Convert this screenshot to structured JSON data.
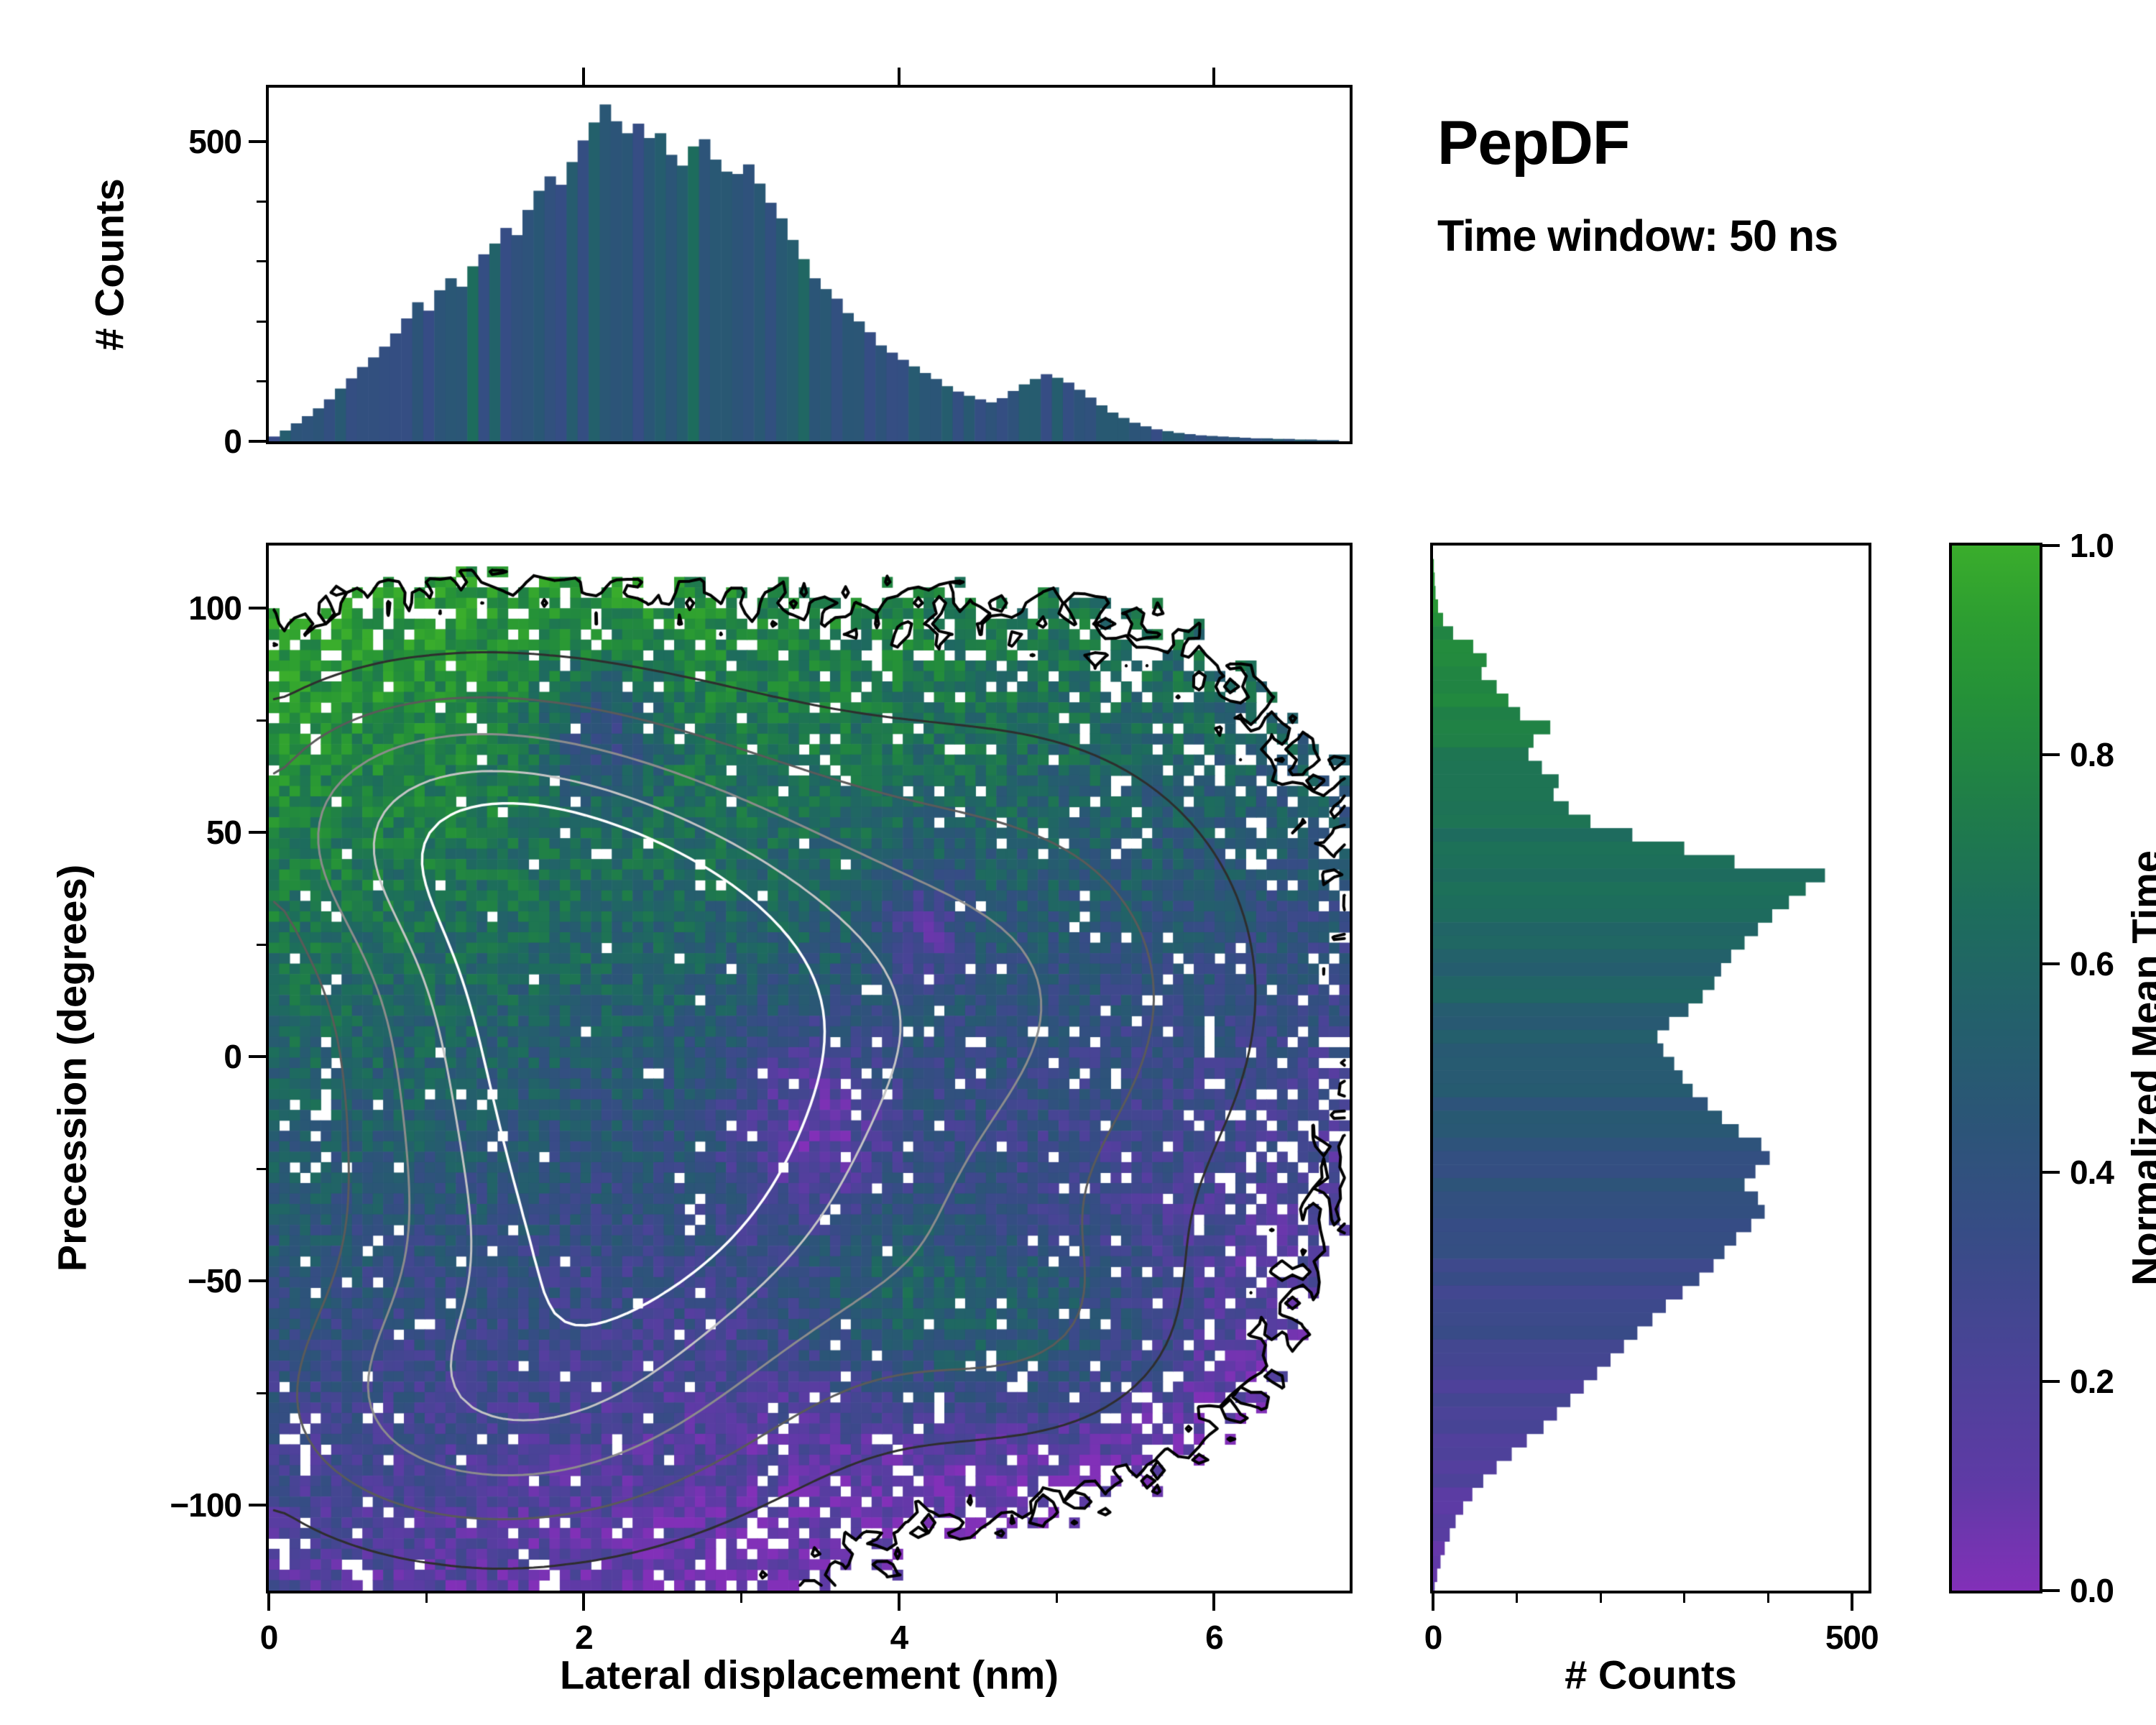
{
  "annotations": {
    "title": "PepDF",
    "subtitle": "Time window: 50 ns"
  },
  "colorbar": {
    "label": "Normalized Mean Time",
    "ticks": [
      {
        "v": 0.0,
        "label": "0.0"
      },
      {
        "v": 0.2,
        "label": "0.2"
      },
      {
        "v": 0.4,
        "label": "0.4"
      },
      {
        "v": 0.6,
        "label": "0.6"
      },
      {
        "v": 0.8,
        "label": "0.8"
      },
      {
        "v": 1.0,
        "label": "1.0"
      }
    ],
    "stops": [
      [
        0.0,
        "#8230b8"
      ],
      [
        0.1,
        "#5f3aa6"
      ],
      [
        0.22,
        "#4a4397"
      ],
      [
        0.34,
        "#374c86"
      ],
      [
        0.45,
        "#2b5577"
      ],
      [
        0.55,
        "#23606b"
      ],
      [
        0.65,
        "#1d6d5c"
      ],
      [
        0.75,
        "#1f7d49"
      ],
      [
        0.85,
        "#249039"
      ],
      [
        0.93,
        "#2d9e31"
      ],
      [
        1.0,
        "#3aad2c"
      ]
    ]
  },
  "chart_data": [
    {
      "id": "top_histogram",
      "type": "bar",
      "orientation": "vertical",
      "ylabel": "# Counts",
      "xlim": [
        0,
        6.86
      ],
      "ylim": [
        0,
        590
      ],
      "x_start": 0.0,
      "bin_width": 0.07,
      "yticks": [
        {
          "v": 0,
          "label": "0"
        },
        {
          "v": 500,
          "label": "500"
        }
      ],
      "minor_yticks": [
        100,
        200,
        300,
        400
      ],
      "top_edge_ticks": [
        2,
        4,
        6
      ],
      "bar_value": 0.43,
      "bar_value_jitter": 0.1,
      "values": [
        8,
        18,
        30,
        42,
        55,
        70,
        88,
        105,
        124,
        140,
        158,
        180,
        205,
        232,
        218,
        252,
        272,
        258,
        292,
        312,
        330,
        356,
        344,
        386,
        418,
        442,
        428,
        466,
        502,
        532,
        562,
        534,
        514,
        530,
        506,
        514,
        478,
        460,
        492,
        504,
        470,
        450,
        446,
        462,
        430,
        398,
        372,
        336,
        304,
        272,
        254,
        238,
        214,
        200,
        182,
        160,
        148,
        136,
        125,
        114,
        104,
        92,
        83,
        76,
        70,
        65,
        72,
        84,
        95,
        104,
        112,
        106,
        98,
        86,
        73,
        60,
        48,
        39,
        31,
        25,
        20,
        17,
        14,
        12,
        10,
        9,
        8,
        7,
        6,
        5,
        5,
        4,
        4,
        3,
        3,
        2,
        2
      ]
    },
    {
      "id": "joint_density_map",
      "type": "heatmap",
      "xlabel": "Lateral displacement (nm)",
      "ylabel": "Precession (degrees)",
      "color_label": "Normalized Mean Time",
      "xlim": [
        0,
        6.86
      ],
      "ylim": [
        -119,
        114
      ],
      "xticks": [
        {
          "v": 0,
          "label": "0"
        },
        {
          "v": 2,
          "label": "2"
        },
        {
          "v": 4,
          "label": "4"
        },
        {
          "v": 6,
          "label": "6"
        }
      ],
      "minor_xticks": [
        1,
        3,
        5
      ],
      "yticks": [
        {
          "v": 100,
          "label": "100"
        },
        {
          "v": 50,
          "label": "50"
        },
        {
          "v": 0,
          "label": "0"
        },
        {
          "v": -50,
          "label": "−50"
        },
        {
          "v": -100,
          "label": "−100"
        }
      ],
      "minor_yticks": [
        75,
        25,
        -25,
        -75
      ],
      "grid": {
        "nx": 104,
        "ny": 100
      },
      "seed": 1234,
      "density_components": [
        {
          "x": 2.2,
          "y": 25,
          "sx": 1.15,
          "sy": 33,
          "w": 1.0
        },
        {
          "x": 2.3,
          "y": -38,
          "sx": 1.3,
          "sy": 36,
          "w": 0.9
        },
        {
          "x": 4.8,
          "y": 15,
          "sx": 1.15,
          "sy": 42,
          "w": 0.55
        },
        {
          "x": 0.9,
          "y": 55,
          "sx": 0.95,
          "sy": 22,
          "w": 0.55
        },
        {
          "x": 1.2,
          "y": -82,
          "sx": 1.1,
          "sy": 22,
          "w": 0.5
        },
        {
          "x": 4.9,
          "y": -62,
          "sx": 0.75,
          "sy": 20,
          "w": 0.28
        }
      ],
      "mask_threshold": 0.075,
      "noise": {
        "density": 0.5,
        "value": 0.14
      },
      "hole_prob": {
        "dense": 0.03,
        "mid": 0.08,
        "sparse": 0.16
      },
      "value_model": {
        "base": 0.5,
        "y_coef": 0.0035,
        "x_coef": -0.045,
        "x_ref": 2.2,
        "anomalies": [
          {
            "x": 2.1,
            "y": 72,
            "sx": 0.28,
            "sy": 11,
            "amp": -0.38
          },
          {
            "x": 3.45,
            "y": -14,
            "sx": 0.33,
            "sy": 16,
            "amp": -0.3
          },
          {
            "x": 4.15,
            "y": 28,
            "sx": 0.2,
            "sy": 9,
            "amp": -0.33
          },
          {
            "x": 4.9,
            "y": -62,
            "sx": 0.7,
            "sy": 16,
            "amp": 0.3
          },
          {
            "x": 3.9,
            "y": -52,
            "sx": 0.5,
            "sy": 14,
            "amp": 0.22
          }
        ]
      },
      "contours": [
        {
          "level": 0.075,
          "color": "#000000",
          "width": 4,
          "field": "noisy"
        },
        {
          "level": 0.25,
          "color": "#2e2e2e",
          "width": 3,
          "field": "smooth"
        },
        {
          "level": 0.45,
          "color": "#5a5a5a",
          "width": 3,
          "field": "smooth"
        },
        {
          "level": 0.65,
          "color": "#8c8c8c",
          "width": 3,
          "field": "smooth"
        },
        {
          "level": 0.85,
          "color": "#c4c4c4",
          "width": 3,
          "field": "smooth"
        },
        {
          "level": 1.0,
          "color": "#ffffff",
          "width": 3.5,
          "field": "smooth"
        }
      ]
    },
    {
      "id": "right_histogram",
      "type": "bar",
      "orientation": "horizontal",
      "xlabel": "# Counts",
      "xlim": [
        0,
        520
      ],
      "ylim": [
        -119,
        114
      ],
      "y_start": 114,
      "bin_width": 3.0,
      "xticks": [
        {
          "v": 0,
          "label": "0"
        },
        {
          "v": 500,
          "label": "500"
        }
      ],
      "minor_xticks": [
        100,
        200,
        300,
        400
      ],
      "value_map": {
        "base": 0.5,
        "y_coef": 0.0035,
        "jitter": 0.05
      },
      "values": [
        0,
        1,
        2,
        3,
        6,
        12,
        24,
        48,
        64,
        58,
        76,
        90,
        104,
        140,
        120,
        114,
        130,
        150,
        144,
        162,
        188,
        238,
        300,
        360,
        468,
        445,
        425,
        405,
        388,
        372,
        356,
        344,
        336,
        322,
        305,
        282,
        268,
        275,
        288,
        298,
        310,
        328,
        345,
        365,
        392,
        402,
        385,
        372,
        388,
        396,
        380,
        362,
        348,
        335,
        318,
        298,
        278,
        262,
        244,
        228,
        212,
        196,
        180,
        164,
        148,
        132,
        112,
        94,
        76,
        60,
        47,
        36,
        27,
        20,
        14,
        9,
        5,
        2
      ]
    }
  ]
}
